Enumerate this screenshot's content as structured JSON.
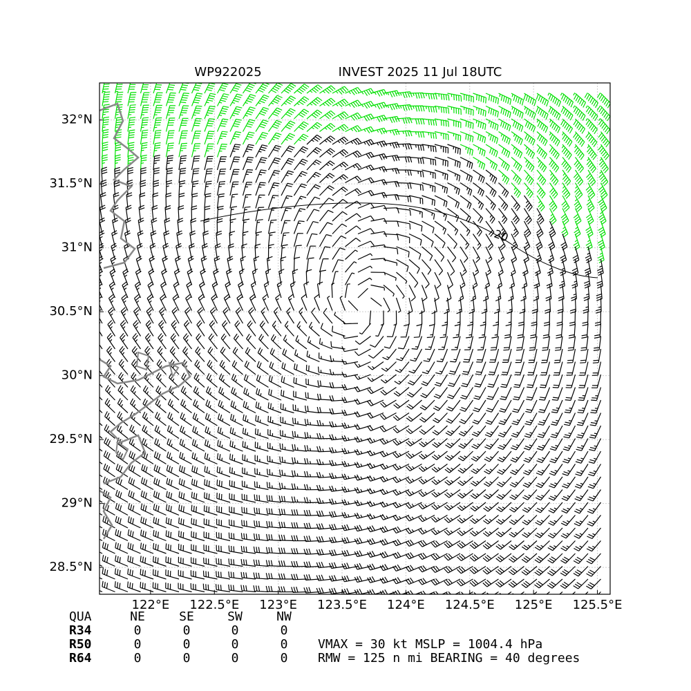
{
  "chart_data": {
    "type": "map",
    "title_left": "WP922025",
    "title_right": "INVEST 2025 11 Jul 18UTC",
    "xlim": [
      121.6,
      125.6
    ],
    "ylim": [
      28.29,
      32.29
    ],
    "xticks": [
      {
        "value": 122,
        "label": "122°E"
      },
      {
        "value": 122.5,
        "label": "122.5°E"
      },
      {
        "value": 123,
        "label": "123°E"
      },
      {
        "value": 123.5,
        "label": "123.5°E"
      },
      {
        "value": 124,
        "label": "124°E"
      },
      {
        "value": 124.5,
        "label": "124.5°E"
      },
      {
        "value": 125,
        "label": "125°E"
      },
      {
        "value": 125.5,
        "label": "125.5°E"
      }
    ],
    "yticks": [
      {
        "value": 28.5,
        "label": "28.5°N"
      },
      {
        "value": 29,
        "label": "29°N"
      },
      {
        "value": 29.5,
        "label": "29.5°N"
      },
      {
        "value": 30,
        "label": "30°N"
      },
      {
        "value": 30.5,
        "label": "30.5°N"
      },
      {
        "value": 31,
        "label": "31°N"
      },
      {
        "value": 31.5,
        "label": "31.5°N"
      },
      {
        "value": 32,
        "label": "32°N"
      }
    ],
    "grid": true,
    "contour_label": "20",
    "table": {
      "header": [
        "QUA",
        "NE",
        "SE",
        "SW",
        "NW"
      ],
      "rows": [
        [
          "R34",
          0,
          0,
          0,
          0
        ],
        [
          "R50",
          0,
          0,
          0,
          0
        ],
        [
          "R64",
          0,
          0,
          0,
          0
        ]
      ]
    },
    "stats": [
      [
        {
          "label": "VMAX =",
          "value": 30,
          "unit": "kt"
        },
        {
          "label": "MSLP =",
          "value": 1004.4,
          "unit": "hPa"
        }
      ],
      [
        {
          "label": "RMW =",
          "value": 125,
          "unit": "n mi"
        },
        {
          "label": "BEARING =",
          "value": 40,
          "unit": "degrees"
        }
      ]
    ]
  }
}
